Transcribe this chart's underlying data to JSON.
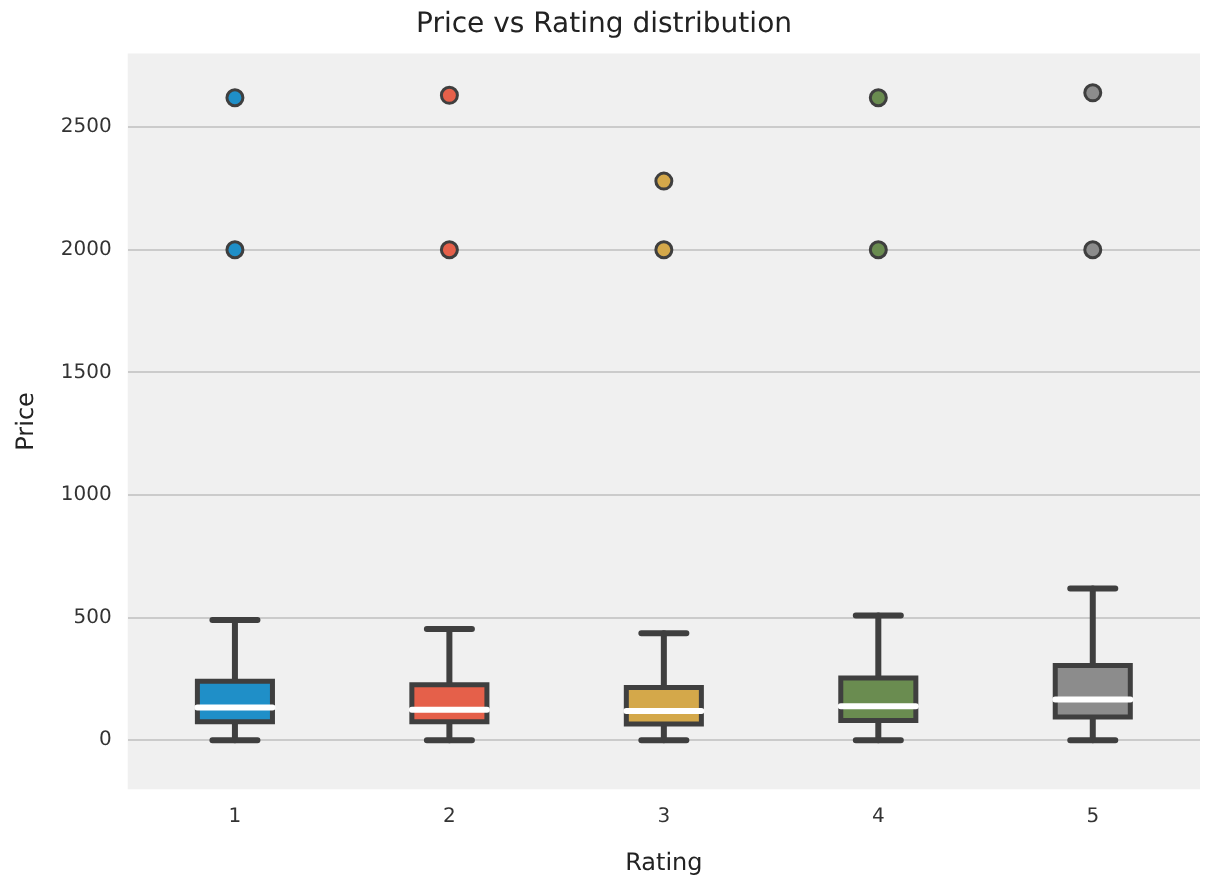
{
  "chart_data": {
    "type": "box",
    "title": "Price vs Rating distribution",
    "xlabel": "Rating",
    "ylabel": "Price",
    "categories": [
      "1",
      "2",
      "3",
      "4",
      "5"
    ],
    "colors": [
      "#1f8fc8",
      "#e5604a",
      "#d4a84a",
      "#6a8c50",
      "#8c8c8c"
    ],
    "boxes": [
      {
        "low": 0,
        "q1": 75,
        "median": 133,
        "q3": 240,
        "high": 490,
        "outliers": [
          2000,
          2620
        ]
      },
      {
        "low": 0,
        "q1": 75,
        "median": 124,
        "q3": 226,
        "high": 453,
        "outliers": [
          2000,
          2630
        ]
      },
      {
        "low": 0,
        "q1": 66,
        "median": 119,
        "q3": 215,
        "high": 436,
        "outliers": [
          2000,
          2280
        ]
      },
      {
        "low": 0,
        "q1": 80,
        "median": 138,
        "q3": 254,
        "high": 508,
        "outliers": [
          2000,
          2620
        ]
      },
      {
        "low": 0,
        "q1": 94,
        "median": 166,
        "q3": 304,
        "high": 619,
        "outliers": [
          2000,
          2640
        ]
      }
    ],
    "ylim": [
      -200,
      2800
    ],
    "yticks": [
      0,
      500,
      1000,
      1500,
      2000,
      2500
    ],
    "grid": "y"
  }
}
